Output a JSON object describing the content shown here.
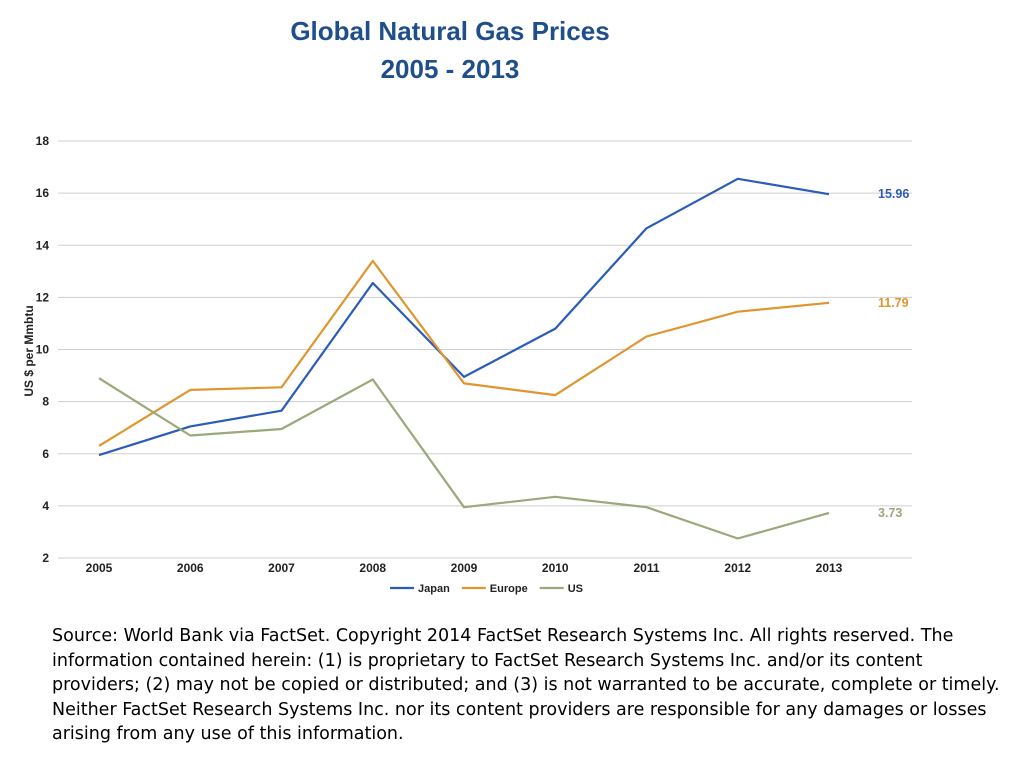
{
  "title": "Global Natural Gas Prices",
  "subtitle": "2005 - 2013",
  "source_note": "Source: World Bank via FactSet. Copyright 2014 FactSet Research Systems Inc. All rights reserved. The information contained herein: (1) is proprietary to FactSet Research Systems Inc. and/or its content providers; (2) may not be copied or distributed; and (3) is not warranted to be accurate, complete or timely. Neither FactSet Research Systems Inc. nor its content providers are responsible for any damages or losses arising from any use of this information.",
  "chart_data": {
    "type": "line",
    "title": "Global Natural Gas Prices",
    "subtitle": "2005 - 2013",
    "xlabel": "",
    "ylabel": "US $ per Mmbtu",
    "x": [
      "2005",
      "2006",
      "2007",
      "2008",
      "2009",
      "2010",
      "2011",
      "2012",
      "2013"
    ],
    "ylim": [
      2,
      18
    ],
    "yticks": [
      2,
      4,
      6,
      8,
      10,
      12,
      14,
      16,
      18
    ],
    "grid": "horizontal",
    "legend_position": "bottom",
    "series": [
      {
        "name": "Japan",
        "color": "#2a5cb8",
        "values": [
          5.95,
          7.05,
          7.65,
          12.55,
          8.95,
          10.8,
          14.65,
          16.55,
          15.96
        ],
        "end_label": "15.96"
      },
      {
        "name": "Europe",
        "color": "#e0952e",
        "values": [
          6.3,
          8.45,
          8.55,
          13.4,
          8.7,
          8.25,
          10.5,
          11.45,
          11.79
        ],
        "end_label": "11.79"
      },
      {
        "name": "US",
        "color": "#9aa87a",
        "values": [
          8.9,
          6.7,
          6.95,
          8.85,
          3.95,
          4.35,
          3.95,
          2.75,
          3.73
        ],
        "end_label": "3.73"
      }
    ]
  }
}
